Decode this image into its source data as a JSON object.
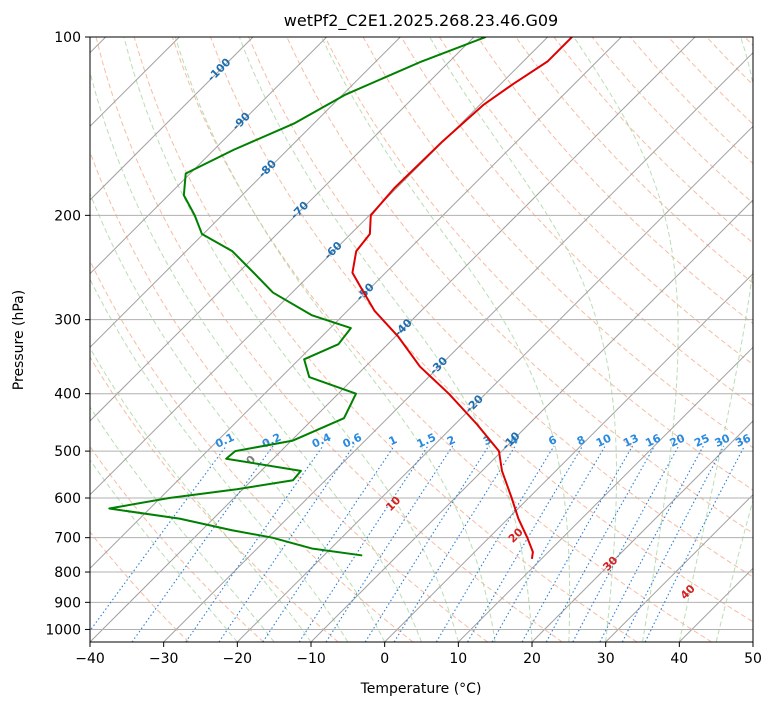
{
  "chart_data": {
    "type": "skew-t",
    "title": "wetPf2_C2E1.2025.268.23.46.G09",
    "xlabel": "Temperature (°C)",
    "ylabel": "Pressure (hPa)",
    "xlim": [
      -40,
      50
    ],
    "ylim": [
      1050,
      100
    ],
    "y_scale": "log",
    "x_ticks": [
      "−40",
      "−30",
      "−20",
      "−10",
      "0",
      "10",
      "20",
      "30",
      "40",
      "50"
    ],
    "y_ticks": [
      {
        "p": 100,
        "label": "100"
      },
      {
        "p": 200,
        "label": "200"
      },
      {
        "p": 300,
        "label": "300"
      },
      {
        "p": 400,
        "label": "400"
      },
      {
        "p": 500,
        "label": "500"
      },
      {
        "p": 600,
        "label": "600"
      },
      {
        "p": 700,
        "label": "700"
      },
      {
        "p": 800,
        "label": "800"
      },
      {
        "p": 900,
        "label": "900"
      },
      {
        "p": 1000,
        "label": "1000"
      }
    ],
    "grid": true,
    "colors": {
      "temperature": "#e00000",
      "dewpoint": "#008000",
      "isotherm": "#a0a0a0",
      "dry_adiabat": "#f4a582",
      "moist_adiabat": "#a6d6a0",
      "mixing_ratio": "#2a7fd4",
      "isotherm_label": "#1f6fb0",
      "mixing_label": "#2a8ae0",
      "wet_bulb_label": "#d62020"
    },
    "isotherm_labels": [
      {
        "t": -100,
        "p": 113,
        "label": "-100"
      },
      {
        "t": -90,
        "p": 138,
        "label": "-90"
      },
      {
        "t": -80,
        "p": 166,
        "label": "-80"
      },
      {
        "t": -70,
        "p": 195,
        "label": "-70"
      },
      {
        "t": -60,
        "p": 228,
        "label": "-60"
      },
      {
        "t": -50,
        "p": 268,
        "label": "-50"
      },
      {
        "t": -40,
        "p": 308,
        "label": "-40"
      },
      {
        "t": -30,
        "p": 357,
        "label": "-30"
      },
      {
        "t": -20,
        "p": 414,
        "label": "-20"
      },
      {
        "t": -10,
        "p": 478,
        "label": "-10"
      }
    ],
    "mixing_ratio_labels": [
      "0.1",
      "0.2",
      "0.4",
      "0.6",
      "1",
      "1.5",
      "2",
      "3",
      "4",
      "6",
      "8",
      "10",
      "13",
      "16",
      "20",
      "25",
      "30",
      "36"
    ],
    "wet_bulb_labels": [
      {
        "t": 0,
        "label": "0"
      },
      {
        "t": 10,
        "label": "10"
      },
      {
        "t": 20,
        "label": "20"
      },
      {
        "t": 30,
        "label": "30"
      },
      {
        "t": 40,
        "label": "40"
      }
    ],
    "series": [
      {
        "key": "temperature",
        "points": [
          [
            100,
            -56.7
          ],
          [
            110,
            -56.7
          ],
          [
            120,
            -58.3
          ],
          [
            130,
            -59.5
          ],
          [
            150,
            -60.1
          ],
          [
            180,
            -60.3
          ],
          [
            200,
            -59.8
          ],
          [
            215,
            -57.4
          ],
          [
            230,
            -56.9
          ],
          [
            250,
            -54.5
          ],
          [
            265,
            -51.3
          ],
          [
            290,
            -46.3
          ],
          [
            320,
            -39.7
          ],
          [
            360,
            -32.6
          ],
          [
            400,
            -25.0
          ],
          [
            450,
            -17.1
          ],
          [
            500,
            -10.4
          ],
          [
            540,
            -7.3
          ],
          [
            600,
            -2.3
          ],
          [
            650,
            1.4
          ],
          [
            700,
            5.2
          ],
          [
            740,
            7.9
          ],
          [
            760,
            8.7
          ]
        ]
      },
      {
        "key": "dewpoint",
        "points": [
          [
            100,
            -68.4
          ],
          [
            110,
            -73.8
          ],
          [
            125,
            -79.6
          ],
          [
            140,
            -82.7
          ],
          [
            155,
            -87.3
          ],
          [
            170,
            -90.6
          ],
          [
            185,
            -87.9
          ],
          [
            200,
            -83.7
          ],
          [
            215,
            -80.2
          ],
          [
            230,
            -73.7
          ],
          [
            250,
            -67.9
          ],
          [
            270,
            -62.6
          ],
          [
            295,
            -54.2
          ],
          [
            310,
            -47.2
          ],
          [
            330,
            -46.7
          ],
          [
            350,
            -49.3
          ],
          [
            375,
            -46.2
          ],
          [
            400,
            -37.6
          ],
          [
            440,
            -35.9
          ],
          [
            480,
            -39.8
          ],
          [
            500,
            -46.2
          ],
          [
            515,
            -46.4
          ],
          [
            540,
            -34.6
          ],
          [
            560,
            -34.4
          ],
          [
            580,
            -40.8
          ],
          [
            600,
            -48.8
          ],
          [
            625,
            -55.5
          ],
          [
            650,
            -44.6
          ],
          [
            680,
            -35.9
          ],
          [
            700,
            -29.4
          ],
          [
            730,
            -22.6
          ],
          [
            750,
            -14.8
          ]
        ]
      }
    ]
  }
}
